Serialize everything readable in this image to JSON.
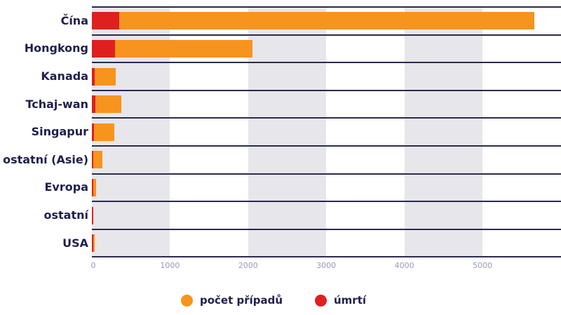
{
  "chart_data": {
    "type": "bar",
    "orientation": "horizontal",
    "stacked": false,
    "title": "",
    "xlabel": "",
    "ylabel": "",
    "categories": [
      "Čína",
      "Hongkong",
      "Kanada",
      "Tchaj-wan",
      "Singapur",
      "ostatní (Asie)",
      "Evropa",
      "ostatní",
      "USA"
    ],
    "series": [
      {
        "name": "počet případů",
        "color": "#f7941d",
        "values": [
          5660,
          2055,
          305,
          377,
          287,
          135,
          54,
          18,
          36
        ]
      },
      {
        "name": "úmrtí",
        "color": "#e01f1f",
        "values": [
          350,
          296,
          40,
          45,
          30,
          10,
          2,
          1,
          1
        ]
      }
    ],
    "xticks": [
      "0",
      "1000",
      "2000",
      "3000",
      "4000",
      "5000"
    ],
    "xlim": [
      0,
      6000
    ],
    "grid": "alternating vertical bands",
    "legend_position": "bottom"
  },
  "legend": [
    {
      "label": "počet případů",
      "color": "#f7941d"
    },
    {
      "label": "úmrtí",
      "color": "#e01f1f"
    }
  ]
}
